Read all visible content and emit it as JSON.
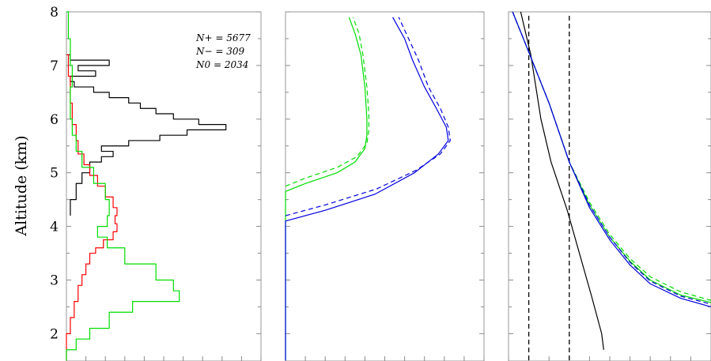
{
  "chart_data": [
    {
      "type": "line",
      "panel": "left",
      "ylabel": "Altitude (km)",
      "ylim": [
        1.5,
        8
      ],
      "yticks": [
        2,
        3,
        4,
        5,
        6,
        7,
        8
      ],
      "annotations": [
        "N+ = 5677",
        "N− = 309",
        "N0 = 2034"
      ],
      "series": [
        {
          "color": "#000000",
          "style": "step",
          "points": [
            [
              0.02,
              4.2
            ],
            [
              0.02,
              4.4
            ],
            [
              0.05,
              4.5
            ],
            [
              0.08,
              4.8
            ],
            [
              0.12,
              5.0
            ],
            [
              0.18,
              5.2
            ],
            [
              0.24,
              5.3
            ],
            [
              0.18,
              5.4
            ],
            [
              0.32,
              5.5
            ],
            [
              0.48,
              5.6
            ],
            [
              0.62,
              5.7
            ],
            [
              0.82,
              5.8
            ],
            [
              0.68,
              5.9
            ],
            [
              0.55,
              6.0
            ],
            [
              0.46,
              6.1
            ],
            [
              0.38,
              6.2
            ],
            [
              0.32,
              6.3
            ],
            [
              0.22,
              6.4
            ],
            [
              0.14,
              6.5
            ],
            [
              0.04,
              6.6
            ],
            [
              0.02,
              6.7
            ],
            [
              0.15,
              6.8
            ],
            [
              0.06,
              6.9
            ],
            [
              0.22,
              7.0
            ],
            [
              0.02,
              7.1
            ],
            [
              0.0,
              7.2
            ]
          ]
        },
        {
          "color": "#ff0000",
          "style": "step",
          "points": [
            [
              0.0,
              1.5
            ],
            [
              0.02,
              2.0
            ],
            [
              0.04,
              2.3
            ],
            [
              0.06,
              2.6
            ],
            [
              0.08,
              2.9
            ],
            [
              0.1,
              3.1
            ],
            [
              0.12,
              3.3
            ],
            [
              0.15,
              3.5
            ],
            [
              0.19,
              3.6
            ],
            [
              0.24,
              3.75
            ],
            [
              0.26,
              3.9
            ],
            [
              0.25,
              4.05
            ],
            [
              0.26,
              4.2
            ],
            [
              0.24,
              4.35
            ],
            [
              0.2,
              4.55
            ],
            [
              0.16,
              4.75
            ],
            [
              0.12,
              4.95
            ],
            [
              0.09,
              5.15
            ],
            [
              0.06,
              5.35
            ],
            [
              0.05,
              5.6
            ],
            [
              0.03,
              5.9
            ],
            [
              0.02,
              6.3
            ],
            [
              0.01,
              6.8
            ],
            [
              0.0,
              7.2
            ]
          ]
        },
        {
          "color": "#00dd00",
          "style": "step",
          "points": [
            [
              0.0,
              1.5
            ],
            [
              0.05,
              1.7
            ],
            [
              0.12,
              1.9
            ],
            [
              0.22,
              2.1
            ],
            [
              0.34,
              2.4
            ],
            [
              0.58,
              2.6
            ],
            [
              0.55,
              2.8
            ],
            [
              0.46,
              3.0
            ],
            [
              0.3,
              3.3
            ],
            [
              0.21,
              3.6
            ],
            [
              0.16,
              3.8
            ],
            [
              0.21,
              4.0
            ],
            [
              0.22,
              4.2
            ],
            [
              0.2,
              4.5
            ],
            [
              0.14,
              4.8
            ],
            [
              0.08,
              5.1
            ],
            [
              0.05,
              5.4
            ],
            [
              0.03,
              5.7
            ],
            [
              0.02,
              6.0
            ],
            [
              0.02,
              6.3
            ],
            [
              0.03,
              6.6
            ],
            [
              0.02,
              7.0
            ],
            [
              0.01,
              7.5
            ],
            [
              0.0,
              8.0
            ]
          ]
        }
      ]
    },
    {
      "type": "line",
      "panel": "middle",
      "ylim": [
        1.5,
        8
      ],
      "series": [
        {
          "color": "#00dd00",
          "dash": false,
          "points": [
            [
              0.0,
              1.5
            ],
            [
              0.0,
              4.65
            ],
            [
              0.1,
              4.8
            ],
            [
              0.26,
              5.0
            ],
            [
              0.35,
              5.2
            ],
            [
              0.4,
              5.45
            ],
            [
              0.41,
              5.7
            ],
            [
              0.41,
              6.0
            ],
            [
              0.4,
              6.6
            ],
            [
              0.38,
              7.2
            ],
            [
              0.35,
              7.6
            ],
            [
              0.32,
              7.9
            ]
          ]
        },
        {
          "color": "#00dd00",
          "dash": true,
          "points": [
            [
              0.0,
              4.75
            ],
            [
              0.1,
              4.9
            ],
            [
              0.26,
              5.1
            ],
            [
              0.36,
              5.3
            ],
            [
              0.41,
              5.55
            ],
            [
              0.42,
              5.8
            ],
            [
              0.42,
              6.1
            ],
            [
              0.41,
              6.6
            ],
            [
              0.39,
              7.2
            ],
            [
              0.37,
              7.6
            ],
            [
              0.34,
              7.9
            ]
          ]
        },
        {
          "color": "#0000dd",
          "dash": false,
          "points": [
            [
              0.0,
              1.5
            ],
            [
              0.0,
              4.1
            ],
            [
              0.2,
              4.3
            ],
            [
              0.45,
              4.6
            ],
            [
              0.65,
              5.0
            ],
            [
              0.77,
              5.35
            ],
            [
              0.82,
              5.6
            ],
            [
              0.81,
              5.85
            ],
            [
              0.76,
              6.2
            ],
            [
              0.7,
              6.6
            ],
            [
              0.64,
              7.1
            ],
            [
              0.6,
              7.5
            ],
            [
              0.54,
              7.9
            ]
          ]
        },
        {
          "color": "#0000dd",
          "dash": true,
          "points": [
            [
              0.0,
              4.2
            ],
            [
              0.2,
              4.4
            ],
            [
              0.46,
              4.7
            ],
            [
              0.66,
              5.05
            ],
            [
              0.78,
              5.35
            ],
            [
              0.83,
              5.6
            ],
            [
              0.82,
              5.85
            ],
            [
              0.78,
              6.2
            ],
            [
              0.72,
              6.6
            ],
            [
              0.67,
              7.1
            ],
            [
              0.62,
              7.5
            ],
            [
              0.57,
              7.9
            ]
          ]
        }
      ]
    },
    {
      "type": "line",
      "panel": "right",
      "ylim": [
        1.5,
        8
      ],
      "vlines": [
        0.1,
        0.3
      ],
      "series": [
        {
          "color": "#000000",
          "dash": false,
          "points": [
            [
              0.06,
              8.0
            ],
            [
              0.11,
              7.2
            ],
            [
              0.16,
              6.0
            ],
            [
              0.21,
              5.2
            ],
            [
              0.29,
              4.3
            ],
            [
              0.35,
              3.5
            ],
            [
              0.41,
              2.7
            ],
            [
              0.46,
              2.0
            ],
            [
              0.47,
              1.7
            ]
          ]
        },
        {
          "color": "#00dd00",
          "dash": false,
          "points": [
            [
              0.02,
              8.0
            ],
            [
              0.1,
              7.25
            ],
            [
              0.2,
              6.3
            ],
            [
              0.3,
              5.2
            ],
            [
              0.4,
              4.4
            ],
            [
              0.5,
              3.8
            ],
            [
              0.6,
              3.35
            ],
            [
              0.7,
              3.0
            ],
            [
              0.85,
              2.72
            ],
            [
              1.0,
              2.58
            ]
          ]
        },
        {
          "color": "#00dd00",
          "dash": true,
          "points": [
            [
              0.02,
              8.0
            ],
            [
              0.1,
              7.25
            ],
            [
              0.2,
              6.3
            ],
            [
              0.3,
              5.2
            ],
            [
              0.4,
              4.45
            ],
            [
              0.5,
              3.85
            ],
            [
              0.6,
              3.4
            ],
            [
              0.7,
              3.06
            ],
            [
              0.85,
              2.78
            ],
            [
              1.0,
              2.62
            ]
          ]
        },
        {
          "color": "#0000dd",
          "dash": false,
          "points": [
            [
              0.02,
              8.0
            ],
            [
              0.1,
              7.25
            ],
            [
              0.2,
              6.3
            ],
            [
              0.3,
              5.2
            ],
            [
              0.4,
              4.35
            ],
            [
              0.5,
              3.75
            ],
            [
              0.6,
              3.28
            ],
            [
              0.7,
              2.93
            ],
            [
              0.85,
              2.66
            ],
            [
              1.0,
              2.5
            ]
          ]
        },
        {
          "color": "#0000dd",
          "dash": true,
          "points": [
            [
              0.02,
              8.0
            ],
            [
              0.1,
              7.25
            ],
            [
              0.2,
              6.3
            ],
            [
              0.3,
              5.2
            ],
            [
              0.4,
              4.4
            ],
            [
              0.5,
              3.8
            ],
            [
              0.6,
              3.33
            ],
            [
              0.7,
              2.98
            ],
            [
              0.85,
              2.7
            ],
            [
              1.0,
              2.55
            ]
          ]
        }
      ]
    }
  ]
}
